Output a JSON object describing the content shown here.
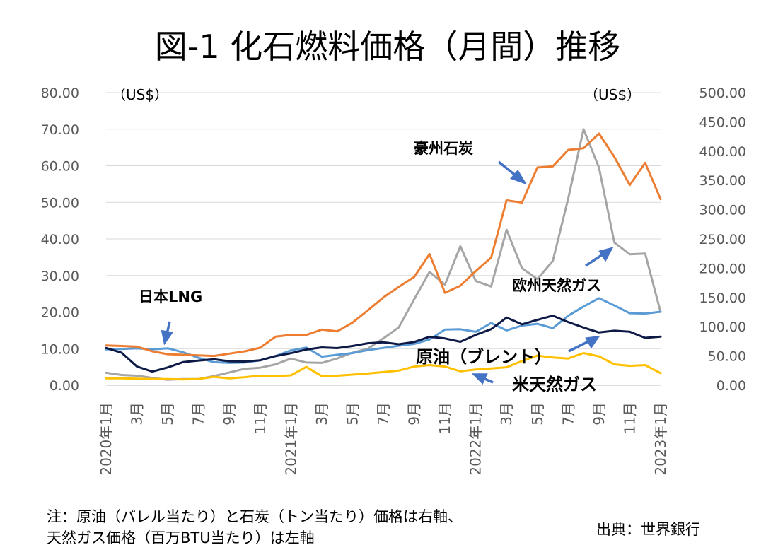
{
  "chart_data": {
    "type": "line",
    "title": "図-1 化石燃料価格（月間）推移",
    "left_axis": {
      "unit": "（US$）",
      "range": [
        0,
        80
      ],
      "ticks": [
        "80.00",
        "70.00",
        "60.00",
        "50.00",
        "40.00",
        "30.00",
        "20.00",
        "10.00",
        "0.00"
      ]
    },
    "right_axis": {
      "unit": "（US$）",
      "range": [
        0,
        500
      ],
      "ticks": [
        "500.00",
        "450.00",
        "400.00",
        "350.00",
        "300.00",
        "250.00",
        "200.00",
        "150.00",
        "100.00",
        "50.00",
        "0.00"
      ]
    },
    "x_tick_labels": [
      "2020年1月",
      "3月",
      "5月",
      "7月",
      "9月",
      "11月",
      "2021年1月",
      "3月",
      "5月",
      "7月",
      "9月",
      "11月",
      "2022年1月",
      "3月",
      "5月",
      "7月",
      "9月",
      "11月",
      "2023年1月"
    ],
    "months": [
      "2020-01",
      "2020-02",
      "2020-03",
      "2020-04",
      "2020-05",
      "2020-06",
      "2020-07",
      "2020-08",
      "2020-09",
      "2020-10",
      "2020-11",
      "2020-12",
      "2021-01",
      "2021-02",
      "2021-03",
      "2021-04",
      "2021-05",
      "2021-06",
      "2021-07",
      "2021-08",
      "2021-09",
      "2021-10",
      "2021-11",
      "2021-12",
      "2022-01",
      "2022-02",
      "2022-03",
      "2022-04",
      "2022-05",
      "2022-06",
      "2022-07",
      "2022-08",
      "2022-09",
      "2022-10",
      "2022-11",
      "2022-12",
      "2023-01"
    ],
    "grid": true,
    "series": [
      {
        "name": "豪州石炭",
        "axis": "right",
        "color": "#ED7D31",
        "values": [
          68,
          67,
          66,
          58,
          53,
          52,
          51,
          50,
          54,
          58,
          64,
          83,
          86,
          86,
          95,
          92,
          107,
          128,
          150,
          168,
          185,
          224,
          158,
          170,
          195,
          218,
          316,
          312,
          372,
          374,
          402,
          405,
          430,
          390,
          342,
          380,
          318
        ]
      },
      {
        "name": "欧州天然ガス",
        "axis": "left",
        "color": "#A5A5A5",
        "values": [
          3.4,
          2.8,
          2.6,
          2.0,
          1.5,
          1.7,
          1.7,
          2.5,
          3.5,
          4.5,
          4.8,
          5.7,
          7.3,
          6.2,
          6.1,
          7.3,
          8.9,
          10.0,
          12.8,
          15.8,
          23.5,
          31.0,
          27.5,
          38.0,
          28.5,
          27.0,
          42.5,
          32.0,
          29.0,
          34.0,
          51.0,
          70.0,
          59.5,
          39.0,
          35.8,
          36.0,
          20.0
        ]
      },
      {
        "name": "日本LNG",
        "axis": "left",
        "color": "#5B9BD5",
        "values": [
          9.8,
          9.9,
          10.1,
          9.8,
          10.1,
          9.0,
          7.5,
          6.3,
          6.1,
          6.2,
          6.8,
          8.0,
          9.5,
          10.3,
          7.8,
          8.3,
          8.8,
          9.6,
          10.2,
          10.8,
          11.3,
          12.5,
          15.2,
          15.3,
          14.6,
          17.0,
          15.0,
          16.3,
          16.8,
          15.6,
          19.0,
          21.5,
          23.8,
          21.8,
          19.7,
          19.6,
          20.1
        ]
      },
      {
        "name": "原油（ブレント）",
        "axis": "right",
        "color": "#0D1A45",
        "values": [
          63.6,
          55.7,
          32.0,
          23.3,
          30.4,
          39.5,
          42.2,
          44.3,
          41.0,
          40.5,
          42.6,
          49.8,
          54.8,
          61.0,
          64.6,
          63.4,
          67.0,
          71.7,
          73.3,
          70.0,
          73.9,
          82.9,
          80.0,
          74.3,
          86.1,
          95.8,
          115.6,
          104.0,
          111.7,
          118.9,
          108.0,
          98.6,
          90.2,
          93.1,
          91.4,
          80.9,
          83.1
        ]
      },
      {
        "name": "米天然ガス",
        "axis": "left",
        "color": "#FFC000",
        "values": [
          1.9,
          1.9,
          1.8,
          1.7,
          1.7,
          1.6,
          1.7,
          2.3,
          1.9,
          2.2,
          2.6,
          2.5,
          2.7,
          5.0,
          2.5,
          2.6,
          2.9,
          3.2,
          3.6,
          4.0,
          5.1,
          5.5,
          5.1,
          3.8,
          4.3,
          4.6,
          4.9,
          6.6,
          8.1,
          7.6,
          7.3,
          8.8,
          7.9,
          5.7,
          5.3,
          5.5,
          3.3
        ]
      }
    ],
    "labels": {
      "coal": "豪州石炭",
      "eu_gas": "欧州天然ガス",
      "lng": "日本LNG",
      "oil": "原油（ブレント）",
      "us_gas": "米天然ガス"
    },
    "note_line1": "注：原油（バレル当たり）と石炭（トン当たり）価格は右軸、",
    "note_line2": "天然ガス価格（百万BTU当たり）は左軸",
    "source": "出典：世界銀行"
  }
}
